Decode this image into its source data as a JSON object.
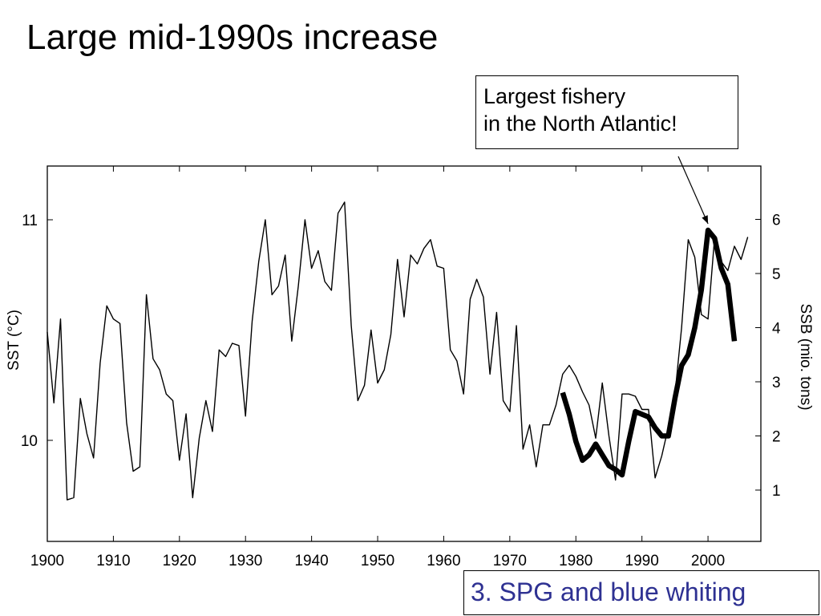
{
  "title": "Large mid-1990s increase",
  "callout": {
    "line1": "Largest fishery",
    "line2": "in the North Atlantic!"
  },
  "footer_label": "3. SPG and blue whiting",
  "chart_data": {
    "type": "line",
    "x_ticks": [
      1900,
      1910,
      1920,
      1930,
      1940,
      1950,
      1960,
      1970,
      1980,
      1990,
      2000
    ],
    "xlim": [
      1900,
      2008
    ],
    "y_left": {
      "label": "SST (°C)",
      "ticks": [
        10,
        11
      ],
      "ticklabels": [
        "10",
        "11"
      ]
    },
    "y_right": {
      "label": "SSB (mio. tons)",
      "ticks": [
        1,
        2,
        3,
        4,
        5,
        6
      ],
      "ticklabels": [
        "1",
        "2",
        "3",
        "4",
        "5",
        "6"
      ]
    },
    "grid": false,
    "series": [
      {
        "axis": "left",
        "color": "#000000",
        "line_style": "thin",
        "x": [
          1900,
          1901,
          1902,
          1903,
          1904,
          1905,
          1906,
          1907,
          1908,
          1909,
          1910,
          1911,
          1912,
          1913,
          1914,
          1915,
          1916,
          1917,
          1918,
          1919,
          1920,
          1921,
          1922,
          1923,
          1924,
          1925,
          1926,
          1927,
          1928,
          1929,
          1930,
          1931,
          1932,
          1933,
          1934,
          1935,
          1936,
          1937,
          1938,
          1939,
          1940,
          1941,
          1942,
          1943,
          1944,
          1945,
          1946,
          1947,
          1948,
          1949,
          1950,
          1951,
          1952,
          1953,
          1954,
          1955,
          1956,
          1957,
          1958,
          1959,
          1960,
          1961,
          1962,
          1963,
          1964,
          1965,
          1966,
          1967,
          1968,
          1969,
          1970,
          1971,
          1972,
          1973,
          1974,
          1975,
          1976,
          1977,
          1978,
          1979,
          1980,
          1981,
          1982,
          1983,
          1984,
          1985,
          1986,
          1987,
          1988,
          1989,
          1990,
          1991,
          1992,
          1993,
          1994,
          1995,
          1996,
          1997,
          1998,
          1999,
          2000,
          2001,
          2002,
          2003,
          2004,
          2005,
          2006
        ],
        "y": [
          10.49,
          10.17,
          10.55,
          9.73,
          9.74,
          10.19,
          10.03,
          9.92,
          10.35,
          10.61,
          10.55,
          10.53,
          10.08,
          9.86,
          9.88,
          10.66,
          10.37,
          10.32,
          10.21,
          10.18,
          9.91,
          10.12,
          9.74,
          10.01,
          10.18,
          10.04,
          10.41,
          10.38,
          10.44,
          10.43,
          10.11,
          10.54,
          10.81,
          11.0,
          10.66,
          10.7,
          10.84,
          10.45,
          10.7,
          11.0,
          10.78,
          10.86,
          10.72,
          10.68,
          11.03,
          11.08,
          10.52,
          10.18,
          10.25,
          10.5,
          10.26,
          10.32,
          10.48,
          10.82,
          10.56,
          10.84,
          10.8,
          10.87,
          10.91,
          10.79,
          10.78,
          10.41,
          10.36,
          10.21,
          10.64,
          10.73,
          10.65,
          10.3,
          10.58,
          10.18,
          10.13,
          10.52,
          9.96,
          10.07,
          9.88,
          10.07,
          10.07,
          10.16,
          10.3,
          10.34,
          10.29,
          10.22,
          10.16,
          10.01,
          10.26,
          10.02,
          9.82,
          10.21,
          10.21,
          10.2,
          10.14,
          10.14,
          9.83,
          9.93,
          10.06,
          10.21,
          10.51,
          10.91,
          10.83,
          10.57,
          10.55,
          10.92,
          10.81,
          10.77,
          10.88,
          10.82,
          10.92
        ]
      },
      {
        "axis": "right",
        "color": "#000000",
        "line_style": "thick",
        "x": [
          1978,
          1979,
          1980,
          1981,
          1982,
          1983,
          1984,
          1985,
          1986,
          1987,
          1988,
          1989,
          1990,
          1991,
          1992,
          1993,
          1994,
          1995,
          1996,
          1997,
          1998,
          1999,
          2000,
          2001,
          2002,
          2003,
          2004
        ],
        "y": [
          2.8,
          2.4,
          1.9,
          1.55,
          1.65,
          1.85,
          1.65,
          1.45,
          1.38,
          1.28,
          1.9,
          2.45,
          2.4,
          2.35,
          2.15,
          2.0,
          2.0,
          2.7,
          3.3,
          3.5,
          4.0,
          4.7,
          5.8,
          5.65,
          5.1,
          4.8,
          3.75
        ]
      }
    ],
    "annotation": {
      "text": "Largest fishery in the North Atlantic!",
      "points_to": {
        "x": 2000,
        "y_right": 5.8
      }
    }
  }
}
